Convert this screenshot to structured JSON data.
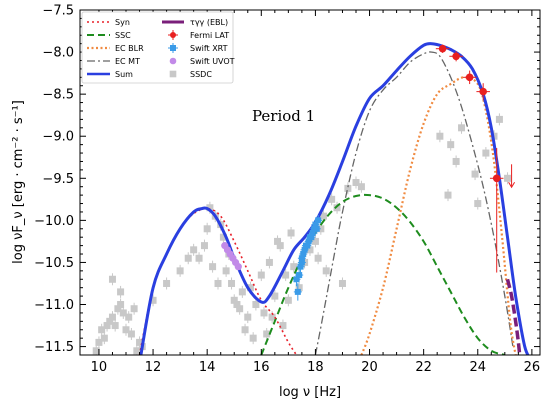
{
  "chart_data": {
    "type": "scatter",
    "xlabel": "log ν [Hz]",
    "ylabel": "log νF_ν [erg · cm⁻² · s⁻¹]",
    "xlim": [
      9.3,
      26.3
    ],
    "ylim": [
      -11.6,
      -7.5
    ],
    "xticks": [
      10,
      12,
      14,
      16,
      18,
      20,
      22,
      24,
      26
    ],
    "yticks": [
      -11.5,
      -11.0,
      -10.5,
      -10.0,
      -9.5,
      -9.0,
      -8.5,
      -8.0,
      -7.5
    ],
    "annotation": "Period 1",
    "legend_position": "top-left",
    "legend": {
      "col1": [
        "Syn",
        "SSC",
        "EC BLR",
        "EC MT",
        "Sum"
      ],
      "col2": [
        "τγγ (EBL)",
        "Fermi LAT",
        "Swift XRT",
        "Swift UVOT",
        "SSDC"
      ]
    },
    "colors": {
      "syn": "#e8202a",
      "ssc": "#1e8c1e",
      "ecblr": "#f08a40",
      "ecmt": "#666666",
      "sum": "#2a3fe0",
      "ebl": "#7a1f7a",
      "fermi": "#e81f1f",
      "xrt": "#3a9be8",
      "uvot": "#c28ae8",
      "ssdc": "#c8c8c8"
    },
    "series": [
      {
        "name": "Syn",
        "x": [
          11.5,
          12.0,
          12.5,
          13.0,
          13.5,
          14.0,
          14.5,
          15.0,
          15.5,
          16.0,
          16.5,
          17.0,
          17.3
        ],
        "y": [
          -11.6,
          -10.8,
          -10.4,
          -10.1,
          -9.92,
          -9.86,
          -9.95,
          -10.25,
          -10.6,
          -10.95,
          -11.15,
          -11.45,
          -11.6
        ]
      },
      {
        "name": "SSC",
        "x": [
          16.0,
          16.5,
          17.0,
          17.5,
          18.0,
          18.5,
          19.0,
          19.5,
          20.0,
          20.5,
          21.0,
          21.5,
          22.0,
          22.5,
          23.0,
          23.5,
          24.0,
          24.5,
          25.0
        ],
        "y": [
          -11.6,
          -11.2,
          -10.8,
          -10.45,
          -10.15,
          -9.93,
          -9.78,
          -9.71,
          -9.7,
          -9.74,
          -9.85,
          -10.02,
          -10.25,
          -10.55,
          -10.85,
          -11.15,
          -11.4,
          -11.55,
          -11.6
        ]
      },
      {
        "name": "EC BLR",
        "x": [
          19.7,
          20.0,
          20.5,
          21.0,
          21.5,
          22.0,
          22.5,
          23.0,
          23.5,
          24.0,
          24.3,
          24.6,
          24.9,
          25.2,
          25.4
        ],
        "y": [
          -11.6,
          -11.35,
          -10.8,
          -10.1,
          -9.4,
          -8.85,
          -8.5,
          -8.38,
          -8.3,
          -8.38,
          -8.7,
          -9.3,
          -10.2,
          -11.2,
          -11.6
        ]
      },
      {
        "name": "EC MT",
        "x": [
          18.0,
          18.3,
          18.7,
          19.0,
          19.5,
          20.0,
          20.5,
          21.0,
          21.5,
          22.0,
          22.3,
          22.6,
          23.0,
          23.4,
          23.8,
          24.2,
          24.6,
          25.0,
          25.3
        ],
        "y": [
          -11.6,
          -11.1,
          -10.4,
          -9.9,
          -9.2,
          -8.7,
          -8.45,
          -8.3,
          -8.12,
          -8.02,
          -8.0,
          -8.05,
          -8.3,
          -8.65,
          -9.1,
          -9.6,
          -10.2,
          -10.9,
          -11.5
        ]
      },
      {
        "name": "Sum",
        "x": [
          11.55,
          12.0,
          12.5,
          13.0,
          13.5,
          13.8,
          14.0,
          14.3,
          14.7,
          15.0,
          15.5,
          16.0,
          16.3,
          16.8,
          17.2,
          17.6,
          18.0,
          18.5,
          19.0,
          19.5,
          20.0,
          20.5,
          21.0,
          21.5,
          22.0,
          22.3,
          22.6,
          23.0,
          23.4,
          23.8,
          24.2,
          24.5,
          24.8,
          25.1,
          25.4,
          25.7,
          25.85
        ],
        "y": [
          -11.6,
          -10.8,
          -10.4,
          -10.1,
          -9.9,
          -9.86,
          -9.86,
          -9.95,
          -10.2,
          -10.45,
          -10.8,
          -10.97,
          -10.9,
          -10.6,
          -10.35,
          -10.2,
          -10.02,
          -9.7,
          -9.3,
          -8.88,
          -8.55,
          -8.4,
          -8.22,
          -8.05,
          -7.92,
          -7.9,
          -7.92,
          -7.97,
          -8.05,
          -8.2,
          -8.5,
          -8.9,
          -9.5,
          -10.2,
          -10.9,
          -11.45,
          -11.6
        ]
      },
      {
        "name": "τγγ (EBL)",
        "x": [
          25.1,
          25.25,
          25.4,
          25.5,
          25.55
        ],
        "y": [
          -10.7,
          -10.9,
          -11.2,
          -11.45,
          -11.6
        ]
      },
      {
        "name": "Fermi LAT",
        "x": [
          22.7,
          23.2,
          23.7,
          24.2
        ],
        "y": [
          -7.96,
          -8.05,
          -8.3,
          -8.47
        ],
        "xerr": [
          0.25,
          0.25,
          0.25,
          0.25
        ],
        "yerr": [
          0.05,
          0.06,
          0.08,
          0.1
        ]
      },
      {
        "name": "Fermi LAT",
        "x": [
          24.7
        ],
        "y": [
          -9.5
        ],
        "xerr": [
          0.25
        ],
        "yerr_up": [
          0.36
        ],
        "yerr_down": [
          1.12
        ]
      },
      {
        "name": "Fermi LAT",
        "x": [
          25.25
        ],
        "y": [
          -9.5
        ],
        "upper_limit": true
      },
      {
        "name": "Swift XRT",
        "x": [
          17.35,
          17.45,
          17.5,
          17.55,
          17.6,
          17.7,
          17.75,
          17.8,
          17.9,
          17.95,
          18.0,
          18.1,
          17.4,
          17.65,
          17.85,
          17.5,
          18.05,
          17.3
        ],
        "y": [
          -10.85,
          -10.55,
          -10.5,
          -10.4,
          -10.35,
          -10.3,
          -10.25,
          -10.2,
          -10.15,
          -10.1,
          -10.05,
          -10.0,
          -10.65,
          -10.3,
          -10.2,
          -10.45,
          -10.1,
          -10.7
        ],
        "yerr": [
          0.08,
          0.05,
          0.05,
          0.05,
          0.04,
          0.04,
          0.04,
          0.04,
          0.04,
          0.04,
          0.04,
          0.04,
          0.05,
          0.04,
          0.04,
          0.05,
          0.04,
          0.06
        ]
      },
      {
        "name": "Swift UVOT",
        "x": [
          14.65,
          14.75,
          14.85,
          14.95,
          15.05,
          15.15
        ],
        "y": [
          -10.3,
          -10.35,
          -10.4,
          -10.45,
          -10.5,
          -10.55
        ]
      },
      {
        "name": "SSDC",
        "x": [
          10.0,
          10.1,
          10.2,
          10.4,
          10.6,
          10.7,
          10.9,
          11.0,
          11.2,
          11.4,
          11.6,
          9.9,
          10.3,
          10.5,
          10.8,
          11.1,
          11.3,
          11.5,
          10.5,
          10.8,
          12.0,
          12.5,
          13.0,
          13.5,
          13.3,
          14.0,
          14.3,
          14.5,
          14.6,
          14.8,
          14.2,
          13.9,
          14.4,
          14.7,
          14.9,
          15.0,
          15.2,
          15.3,
          15.5,
          15.6,
          15.8,
          16.0,
          16.1,
          16.3,
          16.5,
          16.7,
          16.9,
          17.0,
          17.2,
          17.4,
          17.6,
          17.8,
          18.0,
          18.2,
          18.3,
          18.6,
          18.8,
          19.2,
          19.5,
          19.7,
          16.6,
          17.1,
          16.4,
          18.1,
          18.4,
          19.0,
          16.2,
          15.4,
          15.7,
          22.6,
          23.0,
          23.4,
          23.9,
          24.3,
          24.8,
          25.1,
          23.2,
          22.9,
          24.0,
          24.6,
          13.7,
          14.1,
          15.1,
          16.8
        ],
        "y": [
          -11.45,
          -11.3,
          -11.4,
          -11.2,
          -11.25,
          -11.05,
          -11.1,
          -11.3,
          -11.35,
          -11.55,
          -11.5,
          -11.55,
          -11.25,
          -11.15,
          -11.0,
          -11.15,
          -11.05,
          -11.45,
          -10.7,
          -10.85,
          -10.95,
          -10.75,
          -10.6,
          -10.35,
          -10.45,
          -10.1,
          -9.95,
          -10.05,
          -10.2,
          -10.4,
          -10.55,
          -10.3,
          -10.75,
          -10.6,
          -10.75,
          -10.95,
          -11.05,
          -10.85,
          -11.15,
          -10.8,
          -11.0,
          -10.65,
          -11.1,
          -10.5,
          -10.9,
          -10.3,
          -10.65,
          -10.95,
          -10.55,
          -10.8,
          -10.5,
          -10.35,
          -10.25,
          -10.1,
          -9.95,
          -9.75,
          -9.85,
          -9.62,
          -9.55,
          -9.6,
          -10.25,
          -10.15,
          -11.15,
          -10.45,
          -10.6,
          -10.75,
          -11.35,
          -11.3,
          -11.4,
          -9.0,
          -9.1,
          -8.9,
          -9.45,
          -9.2,
          -8.8,
          -9.5,
          -9.3,
          -9.7,
          -9.8,
          -9.0,
          -10.45,
          -9.85,
          -11.0,
          -11.25
        ]
      }
    ]
  }
}
